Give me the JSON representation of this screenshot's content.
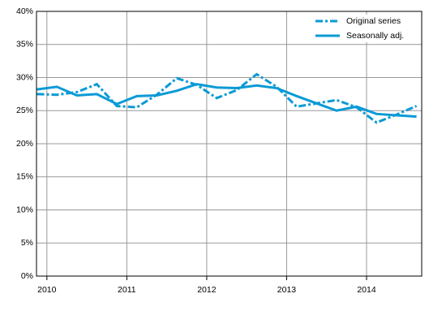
{
  "chart_data": {
    "type": "line",
    "x": [
      2009.875,
      2010.125,
      2010.375,
      2010.625,
      2010.875,
      2011.125,
      2011.375,
      2011.625,
      2011.875,
      2012.125,
      2012.375,
      2012.625,
      2012.875,
      2013.125,
      2013.375,
      2013.625,
      2013.875,
      2014.125,
      2014.375,
      2014.625
    ],
    "series": [
      {
        "name": "Original series",
        "color": "#0a9ad6",
        "dash": "dashdot",
        "values": [
          27.5,
          27.4,
          27.8,
          29.0,
          25.7,
          25.5,
          27.4,
          29.9,
          28.9,
          26.9,
          28.1,
          30.5,
          28.6,
          25.6,
          26.1,
          26.6,
          25.5,
          23.2,
          24.4,
          25.7
        ]
      },
      {
        "name": "Seasonally adj.",
        "color": "#0a9ad6",
        "dash": "solid",
        "values": [
          28.2,
          28.6,
          27.3,
          27.5,
          26.0,
          27.2,
          27.3,
          28.0,
          29.0,
          28.5,
          28.4,
          28.8,
          28.4,
          27.2,
          26.1,
          25.0,
          25.6,
          24.5,
          24.3,
          24.1
        ]
      }
    ],
    "xlim": [
      2009.87,
      2014.69
    ],
    "xticks": [
      2010,
      2011,
      2012,
      2013,
      2014
    ],
    "ylim": [
      0,
      40
    ],
    "yticks": [
      {
        "value": 0,
        "label": "0%"
      },
      {
        "value": 5,
        "label": "5%"
      },
      {
        "value": 10,
        "label": "10%"
      },
      {
        "value": 15,
        "label": "15%"
      },
      {
        "value": 20,
        "label": "20%"
      },
      {
        "value": 25,
        "label": "25%"
      },
      {
        "value": 30,
        "label": "30%"
      },
      {
        "value": 35,
        "label": "35%"
      },
      {
        "value": 40,
        "label": "40%"
      }
    ],
    "grid": true,
    "legend": "top-right"
  }
}
